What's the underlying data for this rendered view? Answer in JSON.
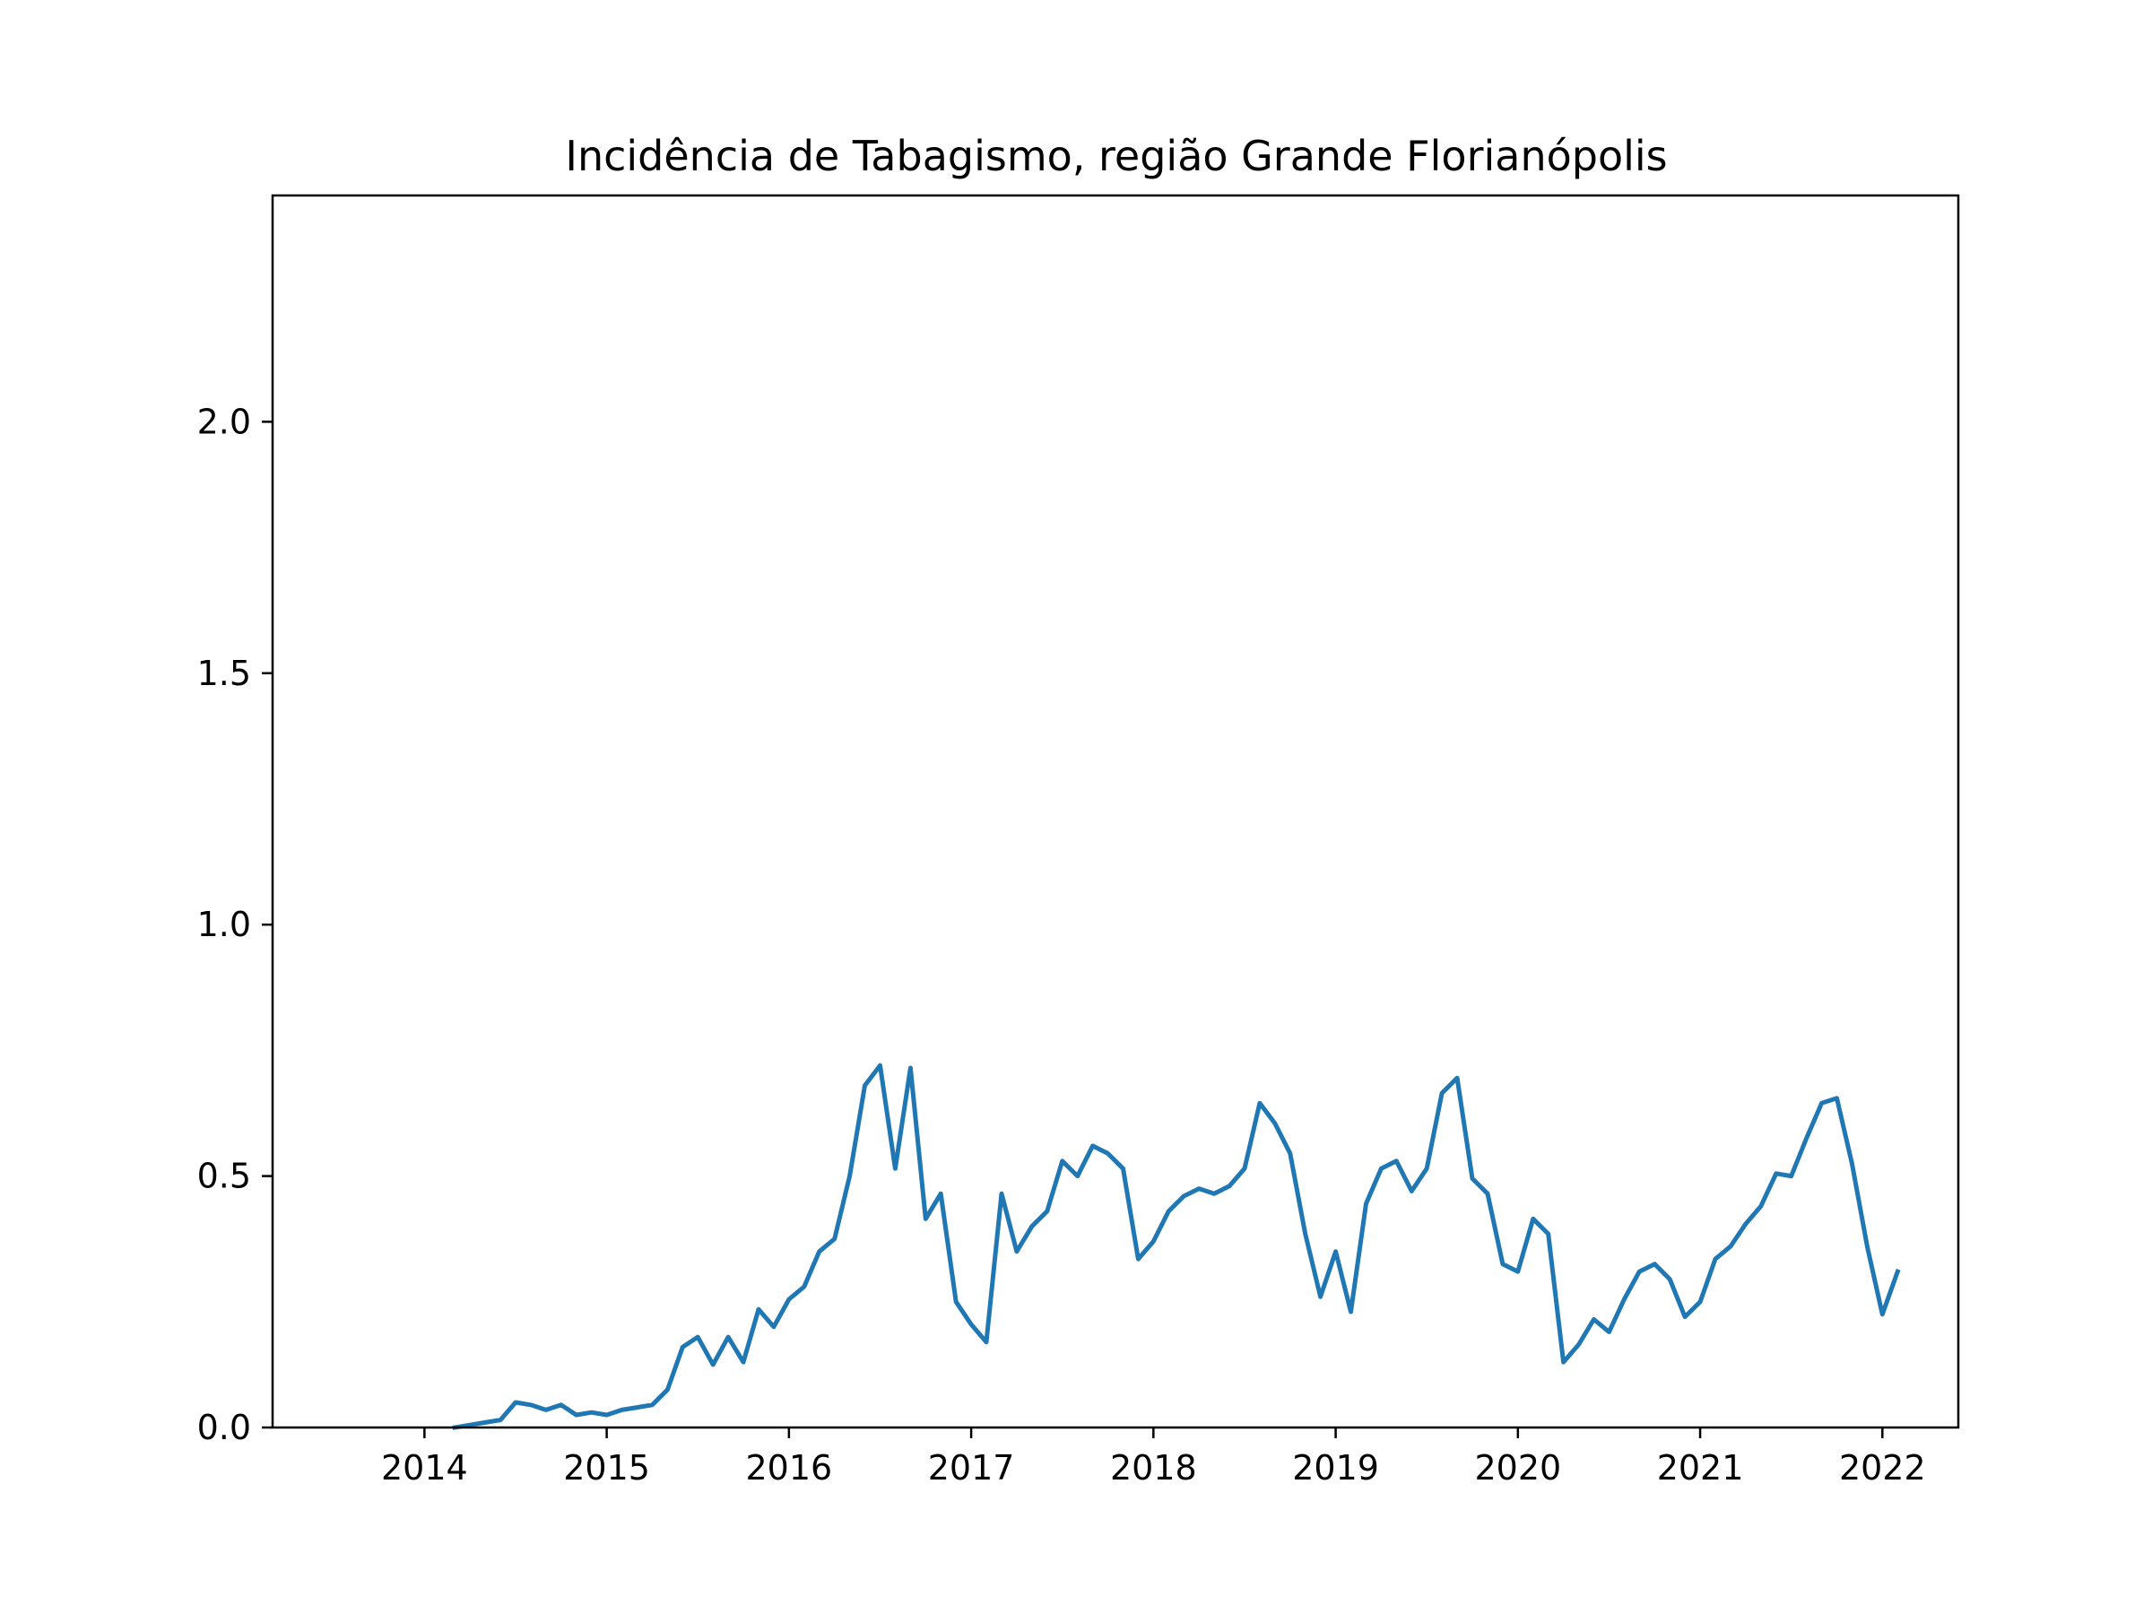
{
  "chart_data": {
    "type": "line",
    "title": "Incidência de Tabagismo, região Grande Florianópolis",
    "xlabel": "",
    "ylabel": "",
    "xlim": [
      "2013-03-01",
      "2022-06-01"
    ],
    "ylim": [
      0,
      2.45
    ],
    "xticks": [
      "2014",
      "2015",
      "2016",
      "2017",
      "2018",
      "2019",
      "2020",
      "2021",
      "2022"
    ],
    "yticks": [
      "0.0",
      "0.5",
      "1.0",
      "1.5",
      "2.0"
    ],
    "grid": false,
    "legend": "none",
    "line_color": "#1f77b4",
    "series": [
      {
        "x": [
          "2014-03",
          "2014-04",
          "2014-05",
          "2014-06",
          "2014-07",
          "2014-08",
          "2014-09",
          "2014-10",
          "2014-11",
          "2014-12",
          "2015-01",
          "2015-02",
          "2015-03",
          "2015-04",
          "2015-05",
          "2015-06",
          "2015-07",
          "2015-08",
          "2015-09",
          "2015-10",
          "2015-11",
          "2015-12",
          "2016-01",
          "2016-02",
          "2016-03",
          "2016-04",
          "2016-05",
          "2016-06",
          "2016-07",
          "2016-08",
          "2016-09",
          "2016-10",
          "2016-11",
          "2016-12",
          "2017-01",
          "2017-02",
          "2017-03",
          "2017-04",
          "2017-05",
          "2017-06",
          "2017-07",
          "2017-08",
          "2017-09",
          "2017-10",
          "2017-11",
          "2017-12",
          "2018-01",
          "2018-02",
          "2018-03",
          "2018-04",
          "2018-05",
          "2018-06",
          "2018-07",
          "2018-08",
          "2018-09",
          "2018-10",
          "2018-11",
          "2018-12",
          "2019-01",
          "2019-02",
          "2019-03",
          "2019-04",
          "2019-05",
          "2019-06",
          "2019-07",
          "2019-08",
          "2019-09",
          "2019-10",
          "2019-11",
          "2019-12",
          "2020-01",
          "2020-02",
          "2020-03",
          "2020-04",
          "2020-05",
          "2020-06",
          "2020-07",
          "2020-08",
          "2020-09",
          "2020-10",
          "2020-11",
          "2020-12",
          "2021-01",
          "2021-02",
          "2021-03",
          "2021-04",
          "2021-05",
          "2021-06",
          "2021-07",
          "2021-08",
          "2021-09",
          "2021-10",
          "2021-11",
          "2021-12",
          "2022-01",
          "2022-02"
        ],
        "values": [
          0.0,
          0.005,
          0.01,
          0.015,
          0.05,
          0.045,
          0.035,
          0.045,
          0.025,
          0.03,
          0.025,
          0.035,
          0.04,
          0.045,
          0.075,
          0.16,
          0.18,
          0.125,
          0.18,
          0.13,
          0.235,
          0.2,
          0.255,
          0.28,
          0.35,
          0.375,
          0.5,
          0.68,
          0.72,
          0.515,
          0.715,
          0.415,
          0.465,
          0.25,
          0.205,
          0.17,
          0.465,
          0.35,
          0.4,
          0.43,
          0.53,
          0.5,
          0.56,
          0.545,
          0.515,
          0.335,
          0.37,
          0.43,
          0.46,
          0.475,
          0.465,
          0.48,
          0.515,
          0.645,
          0.605,
          0.545,
          0.385,
          0.26,
          0.35,
          0.23,
          0.445,
          0.515,
          0.53,
          0.47,
          0.515,
          0.665,
          0.695,
          0.495,
          0.465,
          0.325,
          0.31,
          0.415,
          0.385,
          0.13,
          0.165,
          0.215,
          0.19,
          0.255,
          0.31,
          0.325,
          0.295,
          0.22,
          0.25,
          0.335,
          0.36,
          0.405,
          0.44,
          0.505,
          0.5,
          0.575,
          0.645,
          0.655,
          0.525,
          0.36,
          0.225,
          0.31
        ]
      }
    ]
  }
}
